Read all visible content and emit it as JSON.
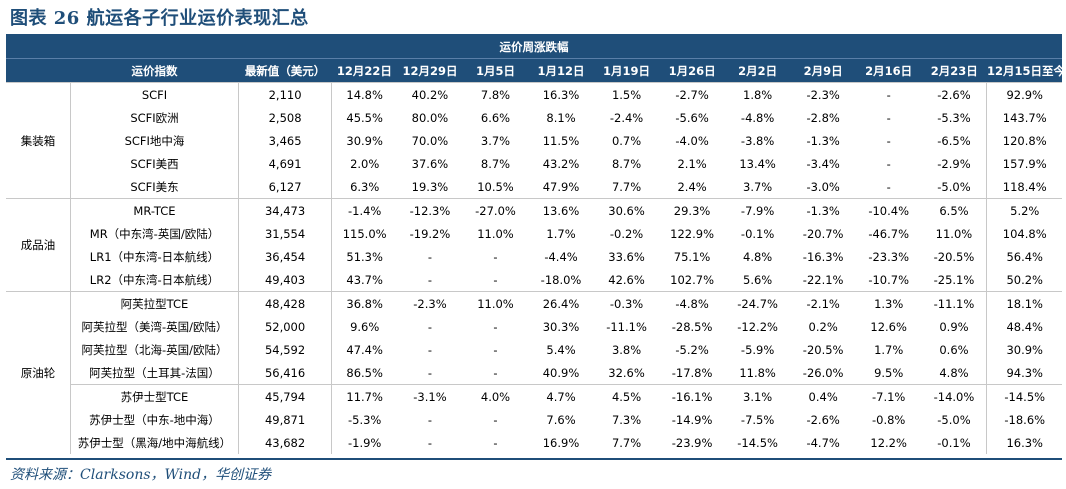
{
  "title": "图表 26  航运各子行业运价表现汇总",
  "header": {
    "band": "运价周涨跌幅",
    "index_col": "运价指数",
    "latest_col": "最新值（美元）",
    "weeks": [
      "12月22日",
      "12月29日",
      "1月5日",
      "1月12日",
      "1月19日",
      "1月26日",
      "2月2日",
      "2月9日",
      "2月16日",
      "2月23日"
    ],
    "since_col": "12月15日至今"
  },
  "groups": [
    {
      "name": "集装箱",
      "rows": [
        {
          "name": "SCFI",
          "latest": "2,110",
          "w": [
            "14.8%",
            "40.2%",
            "7.8%",
            "16.3%",
            "1.5%",
            "-2.7%",
            "1.8%",
            "-2.3%",
            "-",
            "-2.6%"
          ],
          "since": "92.9%"
        },
        {
          "name": "SCFI欧洲",
          "latest": "2,508",
          "w": [
            "45.5%",
            "80.0%",
            "6.6%",
            "8.1%",
            "-2.4%",
            "-5.6%",
            "-4.8%",
            "-2.8%",
            "-",
            "-5.3%"
          ],
          "since": "143.7%"
        },
        {
          "name": "SCFI地中海",
          "latest": "3,465",
          "w": [
            "30.9%",
            "70.0%",
            "3.7%",
            "11.5%",
            "0.7%",
            "-4.0%",
            "-3.8%",
            "-1.3%",
            "-",
            "-6.5%"
          ],
          "since": "120.8%"
        },
        {
          "name": "SCFI美西",
          "latest": "4,691",
          "w": [
            "2.0%",
            "37.6%",
            "8.7%",
            "43.2%",
            "8.7%",
            "2.1%",
            "13.4%",
            "-3.4%",
            "-",
            "-2.9%"
          ],
          "since": "157.9%"
        },
        {
          "name": "SCFI美东",
          "latest": "6,127",
          "w": [
            "6.3%",
            "19.3%",
            "10.5%",
            "47.9%",
            "7.7%",
            "2.4%",
            "3.7%",
            "-3.0%",
            "-",
            "-5.0%"
          ],
          "since": "118.4%"
        }
      ]
    },
    {
      "name": "成品油",
      "rows": [
        {
          "name": "MR-TCE",
          "latest": "34,473",
          "w": [
            "-1.4%",
            "-12.3%",
            "-27.0%",
            "13.6%",
            "30.6%",
            "29.3%",
            "-7.9%",
            "-1.3%",
            "-10.4%",
            "6.5%"
          ],
          "since": "5.2%"
        },
        {
          "name": "MR（中东湾-英国/欧陆）",
          "latest": "31,554",
          "w": [
            "115.0%",
            "-19.2%",
            "11.0%",
            "1.7%",
            "-0.2%",
            "122.9%",
            "-0.1%",
            "-20.7%",
            "-46.7%",
            "11.0%"
          ],
          "since": "104.8%"
        },
        {
          "name": "LR1（中东湾-日本航线）",
          "latest": "36,454",
          "w": [
            "51.3%",
            "-",
            "-",
            "-4.4%",
            "33.6%",
            "75.1%",
            "4.8%",
            "-16.3%",
            "-23.3%",
            "-20.5%"
          ],
          "since": "56.4%"
        },
        {
          "name": "LR2（中东湾-日本航线）",
          "latest": "49,403",
          "w": [
            "43.7%",
            "-",
            "-",
            "-18.0%",
            "42.6%",
            "102.7%",
            "5.6%",
            "-22.1%",
            "-10.7%",
            "-25.1%"
          ],
          "since": "50.2%"
        }
      ]
    },
    {
      "name": "原油轮",
      "rows": [
        {
          "name": "阿芙拉型TCE",
          "latest": "48,428",
          "w": [
            "36.8%",
            "-2.3%",
            "11.0%",
            "26.4%",
            "-0.3%",
            "-4.8%",
            "-24.7%",
            "-2.1%",
            "1.3%",
            "-11.1%"
          ],
          "since": "18.1%"
        },
        {
          "name": "阿芙拉型（美湾-英国/欧陆）",
          "latest": "52,000",
          "w": [
            "9.6%",
            "-",
            "-",
            "30.3%",
            "-11.1%",
            "-28.5%",
            "-12.2%",
            "0.2%",
            "12.6%",
            "0.9%"
          ],
          "since": "48.4%"
        },
        {
          "name": "阿芙拉型（北海-英国/欧陆）",
          "latest": "54,592",
          "w": [
            "47.4%",
            "-",
            "-",
            "5.4%",
            "3.8%",
            "-5.2%",
            "-5.9%",
            "-20.5%",
            "1.7%",
            "0.6%"
          ],
          "since": "30.9%"
        },
        {
          "name": "阿芙拉型（土耳其-法国）",
          "latest": "56,416",
          "w": [
            "86.5%",
            "-",
            "-",
            "40.9%",
            "32.6%",
            "-17.8%",
            "11.8%",
            "-26.0%",
            "9.5%",
            "4.8%"
          ],
          "since": "94.3%"
        },
        {
          "name": "苏伊士型TCE",
          "latest": "45,794",
          "w": [
            "11.7%",
            "-3.1%",
            "4.0%",
            "4.7%",
            "4.5%",
            "-16.1%",
            "3.1%",
            "0.4%",
            "-7.1%",
            "-14.0%"
          ],
          "since": "-14.5%",
          "sub": true
        },
        {
          "name": "苏伊士型（中东-地中海）",
          "latest": "49,871",
          "w": [
            "-5.3%",
            "-",
            "-",
            "7.6%",
            "7.3%",
            "-14.9%",
            "-7.5%",
            "-2.6%",
            "-0.8%",
            "-5.0%"
          ],
          "since": "-18.6%"
        },
        {
          "name": "苏伊士型（黑海/地中海航线）",
          "latest": "43,682",
          "w": [
            "-1.9%",
            "-",
            "-",
            "16.9%",
            "7.7%",
            "-23.9%",
            "-14.5%",
            "-4.7%",
            "12.2%",
            "-0.1%"
          ],
          "since": "16.3%"
        }
      ]
    }
  ],
  "source": "资料来源：Clarksons，Wind，华创证券"
}
